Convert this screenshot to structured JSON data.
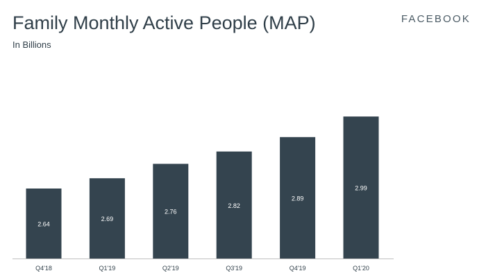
{
  "header": {
    "title": "Family Monthly Active People (MAP)",
    "subtitle": "In Billions",
    "brand": "FACEBOOK"
  },
  "colors": {
    "bar": "#34444f",
    "text": "#2f3e48",
    "bar_label": "#ffffff",
    "axis": "#bfbfbf"
  },
  "chart_data": {
    "type": "bar",
    "categories": [
      "Q4'18",
      "Q1'19",
      "Q2'19",
      "Q3'19",
      "Q4'19",
      "Q1'20"
    ],
    "values": [
      2.64,
      2.69,
      2.76,
      2.82,
      2.89,
      2.99
    ],
    "data_labels": [
      "2.64",
      "2.69",
      "2.76",
      "2.82",
      "2.89",
      "2.99"
    ],
    "title": "Family Monthly Active People (MAP)",
    "subtitle": "In Billions",
    "xlabel": "",
    "ylabel": "",
    "grid": false,
    "legend": "none"
  }
}
